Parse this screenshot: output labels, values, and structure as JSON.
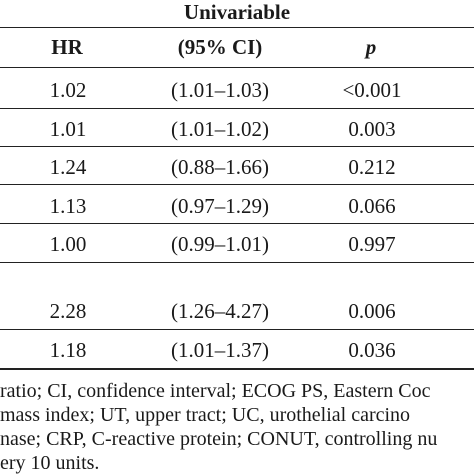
{
  "table": {
    "group_header": "Univariable",
    "columns": [
      "HR",
      "(95% CI)",
      "p"
    ],
    "rows": [
      [
        "1.02",
        "(1.01–1.03)",
        "<0.001"
      ],
      [
        "1.01",
        "(1.01–1.02)",
        "0.003"
      ],
      [
        "1.24",
        "(0.88–1.66)",
        "0.212"
      ],
      [
        "1.13",
        "(0.97–1.29)",
        "0.066"
      ],
      [
        "1.00",
        "(0.99–1.01)",
        "0.997"
      ],
      [
        "2.28",
        "(1.26–4.27)",
        "0.006"
      ],
      [
        "1.18",
        "(1.01–1.37)",
        "0.036"
      ]
    ]
  },
  "footnote": {
    "lines": [
      "ratio; CI, confidence interval; ECOG PS, Eastern Coc",
      "mass index; UT, upper tract; UC, urothelial carcino",
      "nase; CRP, C-reactive protein; CONUT, controlling nu",
      "ery 10 units."
    ]
  }
}
